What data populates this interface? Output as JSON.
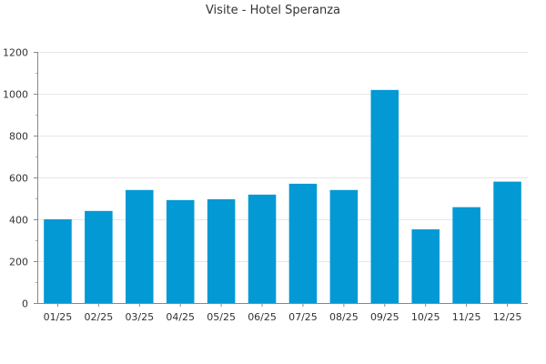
{
  "chart_data": {
    "type": "bar",
    "title": "Visite - Hotel Speranza",
    "xlabel": "",
    "ylabel": "",
    "categories": [
      "01/25",
      "02/25",
      "03/25",
      "04/25",
      "05/25",
      "06/25",
      "07/25",
      "08/25",
      "09/25",
      "10/25",
      "11/25",
      "12/25"
    ],
    "values": [
      400,
      440,
      540,
      492,
      496,
      518,
      570,
      540,
      1018,
      352,
      458,
      580
    ],
    "ylim": [
      0,
      1200
    ],
    "yticks": [
      0,
      200,
      400,
      600,
      800,
      1000,
      1200
    ],
    "bar_color": "#0399d4",
    "grid": true,
    "legend": "none"
  }
}
